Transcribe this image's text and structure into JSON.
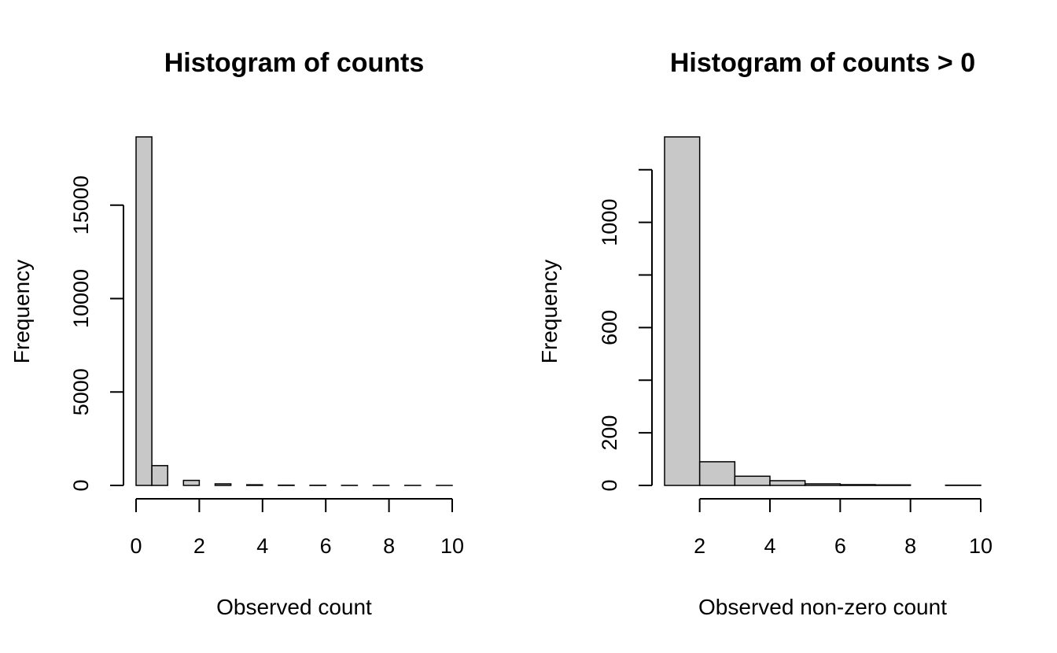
{
  "chart_data": [
    {
      "type": "bar",
      "title": "Histogram of counts",
      "xlabel": "Observed count",
      "ylabel": "Frequency",
      "bins": [
        {
          "x0": 0.0,
          "x1": 0.5,
          "value": 18650
        },
        {
          "x0": 0.5,
          "x1": 1.0,
          "value": 1060
        },
        {
          "x0": 1.0,
          "x1": 1.5,
          "value": 0
        },
        {
          "x0": 1.5,
          "x1": 2.0,
          "value": 270
        },
        {
          "x0": 2.0,
          "x1": 2.5,
          "value": 0
        },
        {
          "x0": 2.5,
          "x1": 3.0,
          "value": 85
        },
        {
          "x0": 3.0,
          "x1": 3.5,
          "value": 0
        },
        {
          "x0": 3.5,
          "x1": 4.0,
          "value": 35
        },
        {
          "x0": 4.0,
          "x1": 4.5,
          "value": 0
        },
        {
          "x0": 4.5,
          "x1": 5.0,
          "value": 15
        },
        {
          "x0": 5.0,
          "x1": 5.5,
          "value": 0
        },
        {
          "x0": 5.5,
          "x1": 6.0,
          "value": 8
        },
        {
          "x0": 6.0,
          "x1": 6.5,
          "value": 0
        },
        {
          "x0": 6.5,
          "x1": 7.0,
          "value": 4
        },
        {
          "x0": 7.0,
          "x1": 7.5,
          "value": 0
        },
        {
          "x0": 7.5,
          "x1": 8.0,
          "value": 3
        },
        {
          "x0": 8.0,
          "x1": 8.5,
          "value": 0
        },
        {
          "x0": 8.5,
          "x1": 9.0,
          "value": 2
        },
        {
          "x0": 9.0,
          "x1": 9.5,
          "value": 0
        },
        {
          "x0": 9.5,
          "x1": 10.0,
          "value": 1
        }
      ],
      "xlim": [
        0,
        10
      ],
      "ylim": [
        0,
        18650
      ],
      "xticks": [
        0,
        2,
        4,
        6,
        8,
        10
      ],
      "yticks": [
        0,
        5000,
        10000,
        15000
      ],
      "yticks_labeled": [
        "0",
        "5000",
        "10000",
        "15000"
      ],
      "grid": false
    },
    {
      "type": "bar",
      "title": "Histogram of counts > 0",
      "xlabel": "Observed non-zero count",
      "ylabel": "Frequency",
      "bins": [
        {
          "x0": 1,
          "x1": 2,
          "value": 1325
        },
        {
          "x0": 2,
          "x1": 3,
          "value": 90
        },
        {
          "x0": 3,
          "x1": 4,
          "value": 35
        },
        {
          "x0": 4,
          "x1": 5,
          "value": 18
        },
        {
          "x0": 5,
          "x1": 6,
          "value": 6
        },
        {
          "x0": 6,
          "x1": 7,
          "value": 3
        },
        {
          "x0": 7,
          "x1": 8,
          "value": 2
        },
        {
          "x0": 8,
          "x1": 9,
          "value": 0
        },
        {
          "x0": 9,
          "x1": 10,
          "value": 1
        }
      ],
      "xlim": [
        1,
        10
      ],
      "ylim": [
        0,
        1325
      ],
      "xticks": [
        2,
        4,
        6,
        8,
        10
      ],
      "yticks": [
        0,
        200,
        400,
        600,
        800,
        1000,
        1200
      ],
      "yticks_labeled": [
        "0",
        "200",
        "",
        "600",
        "",
        "1000",
        ""
      ],
      "grid": false
    }
  ]
}
